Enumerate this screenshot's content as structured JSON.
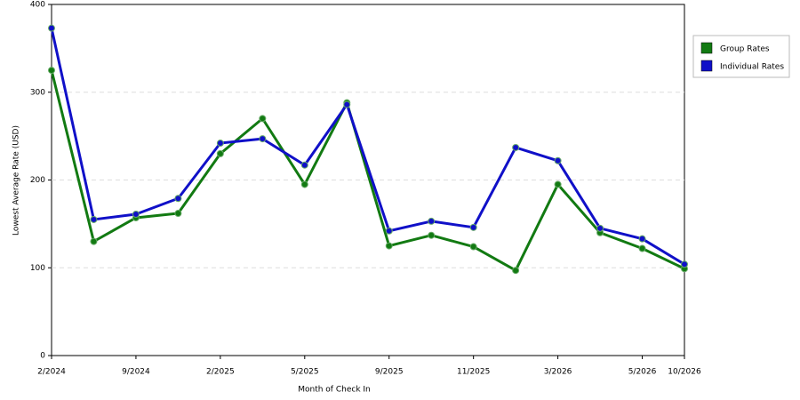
{
  "chart_data": {
    "type": "line",
    "x_label": "Month of Check In",
    "y_label": "Lowest Average Rate (USD)",
    "categories": [
      "2/2024",
      null,
      "9/2024",
      null,
      "2/2025",
      null,
      "5/2025",
      null,
      "9/2025",
      null,
      "11/2025",
      null,
      "3/2026",
      null,
      "5/2026",
      "10/2026"
    ],
    "series": [
      {
        "name": "Group Rates",
        "color": "#127a12",
        "values": [
          325,
          130,
          157,
          162,
          230,
          270,
          195,
          288,
          125,
          137,
          124,
          97,
          195,
          140,
          122,
          99
        ]
      },
      {
        "name": "Individual Rates",
        "color": "#1010c8",
        "values": [
          373,
          155,
          161,
          179,
          242,
          247,
          217,
          286,
          142,
          153,
          146,
          237,
          222,
          145,
          133,
          104
        ]
      }
    ],
    "ylim": [
      0,
      400
    ],
    "yticks": [
      0,
      100,
      200,
      300,
      400
    ],
    "grid": true,
    "legend": "right"
  }
}
